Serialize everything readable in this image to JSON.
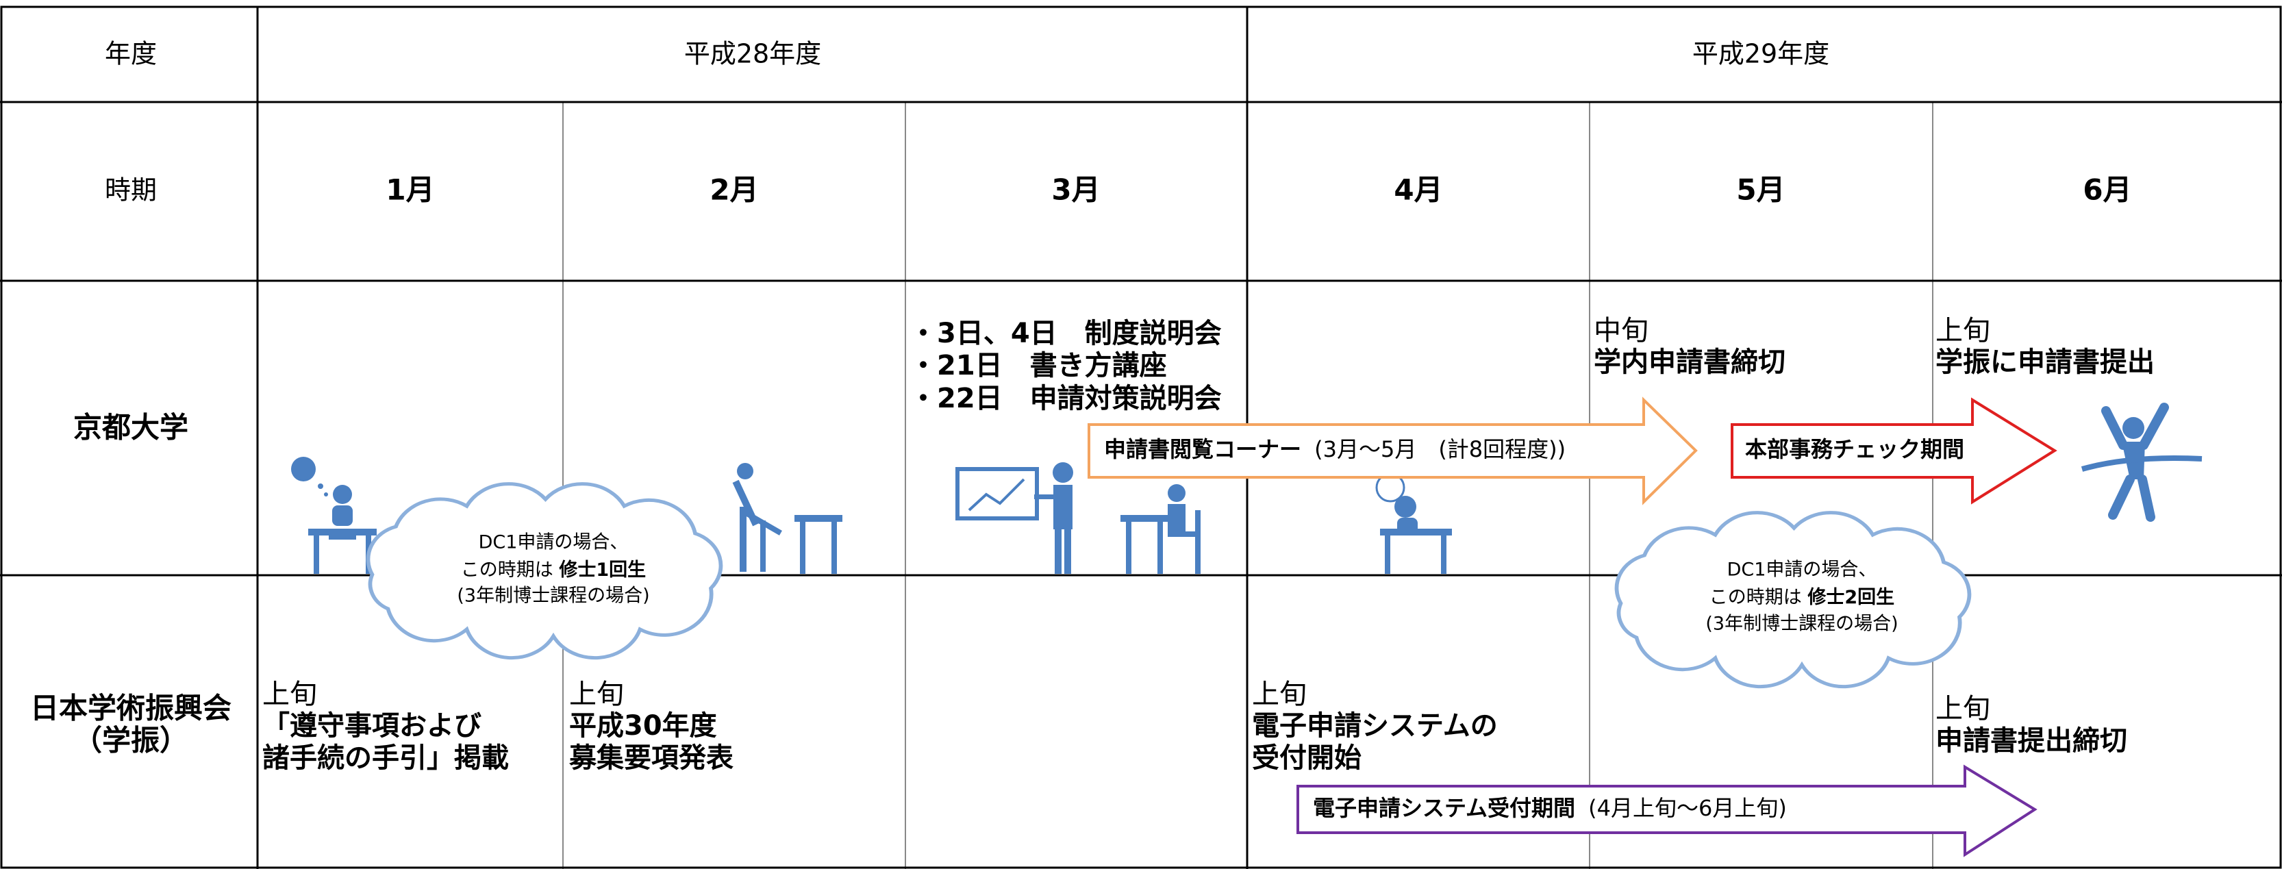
{
  "header": {
    "year_label": "年度",
    "years": [
      "平成28年度",
      "平成29年度"
    ]
  },
  "period_label": "時期",
  "months": [
    "1月",
    "2月",
    "3月",
    "4月",
    "5月",
    "6月"
  ],
  "kyoto": {
    "label": "京都大学",
    "march": [
      "・3日、4日　制度説明会",
      "・21日　書き方講座",
      "・22日　申請対策説明会"
    ],
    "may": [
      "中旬",
      "学内申請書締切"
    ],
    "june": [
      "上旬",
      "学振に申請書提出"
    ]
  },
  "jsps": {
    "label": [
      "日本学術振興会",
      "（学振）"
    ],
    "january": [
      "上旬",
      "「遵守事項および",
      "諸手続の手引」掲載"
    ],
    "february": [
      "上旬",
      "平成30年度",
      "募集要項発表"
    ],
    "april": [
      "上旬",
      "電子申請システムの",
      "受付開始"
    ],
    "june": [
      "上旬",
      "申請書提出締切"
    ]
  },
  "arrows": [
    {
      "label": "申請書閲覧コーナー",
      "note": "(3月～5月　(計8回程度))"
    },
    {
      "label": "本部事務チェック期間"
    },
    {
      "label": "電子申請システム受付期間",
      "note": "(4月上旬～6月上旬)"
    }
  ],
  "clouds": [
    {
      "lines": [
        "DC1申請の場合、",
        "この時期は",
        "修士1回生",
        "(3年制博士課程の場合)"
      ]
    },
    {
      "lines": [
        "DC1申請の場合、",
        "この時期は",
        "修士2回生",
        "(3年制博士課程の場合)"
      ]
    }
  ]
}
